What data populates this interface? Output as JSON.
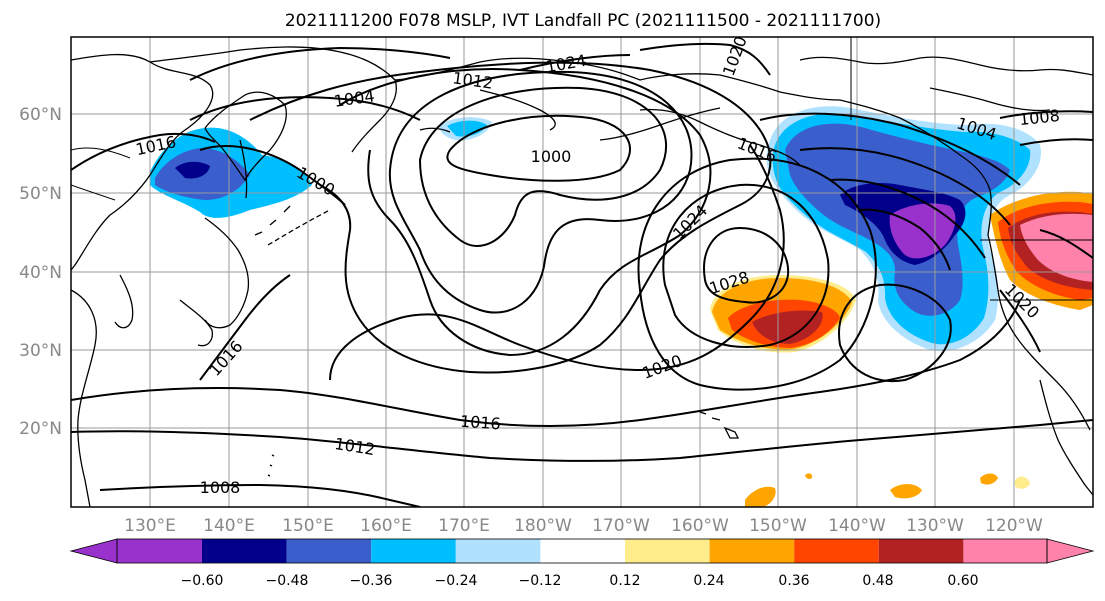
{
  "title": "2021111200 F078 MSLP, IVT Landfall PC (2021111500 - 2021111700)",
  "lat_ticks": [
    "20°N",
    "30°N",
    "40°N",
    "50°N",
    "60°N"
  ],
  "lon_ticks": [
    "130°E",
    "140°E",
    "150°E",
    "160°E",
    "170°E",
    "180°W",
    "170°W",
    "160°W",
    "150°W",
    "140°W",
    "130°W",
    "120°W"
  ],
  "colorbar": {
    "colors": [
      "#9932cc",
      "#00008b",
      "#3a5fcd",
      "#00bfff",
      "#b0e2ff",
      "#ffffff",
      "#ffec8b",
      "#ffa500",
      "#ff4500",
      "#b22222",
      "#ff82ab"
    ],
    "tick_labels": [
      "−0.60",
      "−0.48",
      "−0.36",
      "−0.24",
      "−0.12",
      "0.12",
      "0.24",
      "0.36",
      "0.48",
      "0.60"
    ]
  },
  "contour_labels": [
    {
      "id": "l1000",
      "text": "1000"
    },
    {
      "id": "l1004a",
      "text": "1004"
    },
    {
      "id": "l1012a",
      "text": "1012"
    },
    {
      "id": "l1024a",
      "text": "1024"
    },
    {
      "id": "l1020a",
      "text": "1020"
    },
    {
      "id": "l1016a",
      "text": "1016"
    },
    {
      "id": "l1000b",
      "text": "1000"
    },
    {
      "id": "l1016b",
      "text": "1016"
    },
    {
      "id": "l1024b",
      "text": "1024"
    },
    {
      "id": "l1028",
      "text": "1028"
    },
    {
      "id": "l1020b",
      "text": "1020"
    },
    {
      "id": "l1016c",
      "text": "1016"
    },
    {
      "id": "l1012b",
      "text": "1012"
    },
    {
      "id": "l1008a",
      "text": "1008"
    },
    {
      "id": "l1016d",
      "text": "1016"
    },
    {
      "id": "l1004b",
      "text": "1004"
    },
    {
      "id": "l1008b",
      "text": "1008"
    },
    {
      "id": "l1020c",
      "text": "1020"
    }
  ],
  "colors": {
    "frame": "#000000",
    "grid": "#9a9a9a",
    "isobar": "#000000",
    "coast": "#000000"
  }
}
